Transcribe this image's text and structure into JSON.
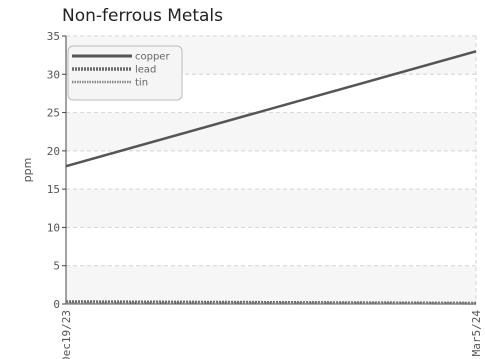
{
  "chart_data": {
    "type": "line",
    "title": "Non-ferrous Metals",
    "xlabel": "",
    "ylabel": "ppm",
    "x": [
      "Dec19/23",
      "Mar5/24"
    ],
    "x_tick_labels": [
      "Dec19/23",
      "Mar5/24"
    ],
    "ylim": [
      0,
      35
    ],
    "y_ticks": [
      0,
      5,
      10,
      15,
      20,
      25,
      30,
      35
    ],
    "grid": true,
    "legend_position": "top-left",
    "series": [
      {
        "name": "copper",
        "values": [
          18,
          33
        ],
        "color": "#555555",
        "style": "solid"
      },
      {
        "name": "lead",
        "values": [
          0.3,
          0.1
        ],
        "color": "#6a6a6a",
        "style": "dotted-thick"
      },
      {
        "name": "tin",
        "values": [
          0.1,
          0.1
        ],
        "color": "#888888",
        "style": "dotted-thin"
      }
    ]
  }
}
